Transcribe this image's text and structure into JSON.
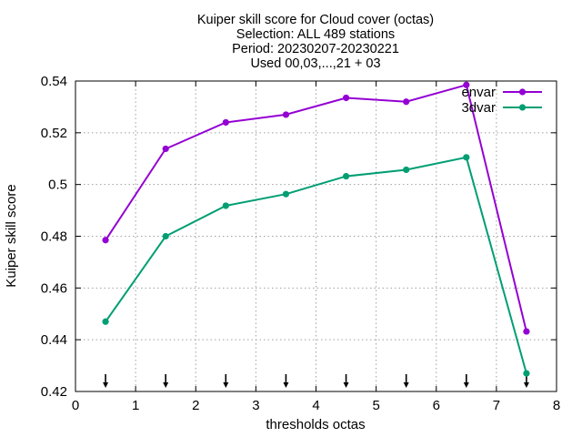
{
  "chart_data": {
    "type": "line",
    "title_lines": [
      "Kuiper skill score  for Cloud cover (octas)",
      "Selection: ALL    489 stations",
      "Period: 20230207-20230221",
      "Used 00,03,...,21 + 03"
    ],
    "xlabel": "thresholds octas",
    "ylabel": "Kuiper skill score",
    "xlim": [
      0,
      8
    ],
    "ylim": [
      0.42,
      0.54
    ],
    "x_ticks": [
      0,
      1,
      2,
      3,
      4,
      5,
      6,
      7,
      8
    ],
    "x_tick_labels": [
      "0",
      "1",
      "2",
      "3",
      "4",
      "5",
      "6",
      "7",
      "8"
    ],
    "y_ticks": [
      0.42,
      0.44,
      0.46,
      0.48,
      0.5,
      0.52,
      0.54
    ],
    "y_tick_labels": [
      "0.42",
      "0.44",
      "0.46",
      "0.48",
      "0.5",
      "0.52",
      "0.54"
    ],
    "grid": true,
    "legend_position": "top-right",
    "x": [
      0.5,
      1.5,
      2.5,
      3.5,
      4.5,
      5.5,
      6.5,
      7.5
    ],
    "series": [
      {
        "name": "envar",
        "color": "#9400d3",
        "values": [
          0.4785,
          0.5138,
          0.524,
          0.527,
          0.5335,
          0.532,
          0.5385,
          0.4432
        ]
      },
      {
        "name": "3dvar",
        "color": "#009e73",
        "values": [
          0.447,
          0.48,
          0.4918,
          0.4963,
          0.5032,
          0.5057,
          0.5105,
          0.427
        ]
      }
    ],
    "arrow_markers_x": [
      0.5,
      1.5,
      2.5,
      3.5,
      4.5,
      5.5,
      6.5,
      7.5
    ]
  }
}
